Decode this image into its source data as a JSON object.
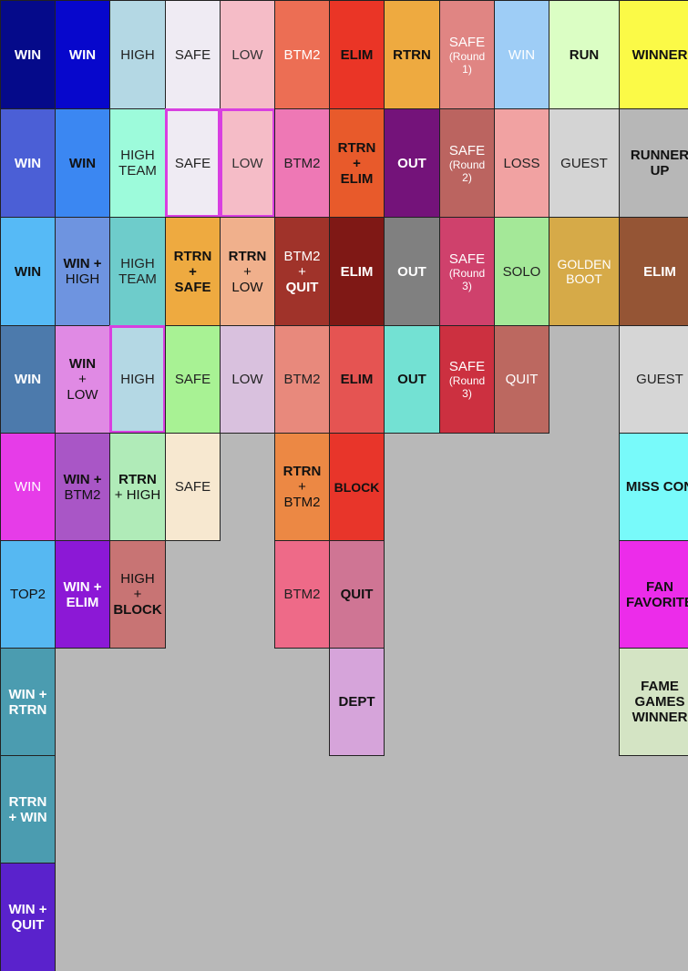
{
  "legend_cells": [
    {
      "col": 0,
      "row": 0,
      "bg": "#050a8a",
      "fg": "#ffffff",
      "lines": [
        {
          "t": "WIN",
          "b": true
        }
      ]
    },
    {
      "col": 1,
      "row": 0,
      "bg": "#0707cc",
      "fg": "#ffffff",
      "lines": [
        {
          "t": "WIN",
          "b": true
        }
      ]
    },
    {
      "col": 2,
      "row": 0,
      "bg": "#b4d8e4",
      "fg": "#222222",
      "lines": [
        {
          "t": "HIGH"
        }
      ]
    },
    {
      "col": 3,
      "row": 0,
      "bg": "#efebf3",
      "fg": "#222222",
      "lines": [
        {
          "t": "SAFE"
        }
      ]
    },
    {
      "col": 4,
      "row": 0,
      "bg": "#f5bcc7",
      "fg": "#333333",
      "lines": [
        {
          "t": "LOW"
        }
      ]
    },
    {
      "col": 5,
      "row": 0,
      "bg": "#ec6e54",
      "fg": "#ffffff",
      "lines": [
        {
          "t": "BTM2"
        }
      ]
    },
    {
      "col": 6,
      "row": 0,
      "bg": "#ea3526",
      "fg": "#111111",
      "lines": [
        {
          "t": "ELIM",
          "b": true
        }
      ]
    },
    {
      "col": 7,
      "row": 0,
      "bg": "#eeaa40",
      "fg": "#111111",
      "lines": [
        {
          "t": "RTRN",
          "b": true
        }
      ]
    },
    {
      "col": 8,
      "row": 0,
      "bg": "#e08583",
      "fg": "#ffffff",
      "lines": [
        {
          "t": "SAFE"
        },
        {
          "t": "(Round",
          "s": "small"
        },
        {
          "t": "1)",
          "s": "small"
        }
      ]
    },
    {
      "col": 9,
      "row": 0,
      "bg": "#9ecdf6",
      "fg": "#ffffff",
      "lines": [
        {
          "t": "WIN"
        }
      ]
    },
    {
      "col": 10,
      "row": 0,
      "bg": "#dbfec4",
      "fg": "#111111",
      "lines": [
        {
          "t": "RUN",
          "b": true
        }
      ]
    },
    {
      "col": 11,
      "row": 0,
      "bg": "#fbfa47",
      "fg": "#111111",
      "lines": [
        {
          "t": "WINNER",
          "b": true
        }
      ]
    },
    {
      "col": 0,
      "row": 1,
      "bg": "#4b5fd6",
      "fg": "#ffffff",
      "lines": [
        {
          "t": "WIN",
          "b": true
        }
      ]
    },
    {
      "col": 1,
      "row": 1,
      "bg": "#3b87f2",
      "fg": "#111111",
      "lines": [
        {
          "t": "WIN",
          "b": true
        }
      ]
    },
    {
      "col": 2,
      "row": 1,
      "bg": "#9dfbdb",
      "fg": "#222222",
      "lines": [
        {
          "t": "HIGH"
        },
        {
          "t": "TEAM"
        }
      ]
    },
    {
      "col": 3,
      "row": 1,
      "bg": "#efebf3",
      "fg": "#222222",
      "hl": true,
      "lines": [
        {
          "t": "SAFE"
        }
      ]
    },
    {
      "col": 4,
      "row": 1,
      "bg": "#f5bcc7",
      "fg": "#333333",
      "hl": true,
      "lines": [
        {
          "t": "LOW"
        }
      ]
    },
    {
      "col": 5,
      "row": 1,
      "bg": "#ee78b5",
      "fg": "#222222",
      "lines": [
        {
          "t": "BTM2"
        }
      ]
    },
    {
      "col": 6,
      "row": 1,
      "bg": "#e85a2b",
      "fg": "#111111",
      "lines": [
        {
          "t": "RTRN",
          "b": true
        },
        {
          "t": "+",
          "b": true
        },
        {
          "t": "ELIM",
          "b": true
        }
      ]
    },
    {
      "col": 7,
      "row": 1,
      "bg": "#74137a",
      "fg": "#ffffff",
      "lines": [
        {
          "t": "OUT",
          "b": true
        }
      ]
    },
    {
      "col": 8,
      "row": 1,
      "bg": "#bb6460",
      "fg": "#ffffff",
      "lines": [
        {
          "t": "SAFE"
        },
        {
          "t": "(Round",
          "s": "small"
        },
        {
          "t": "2)",
          "s": "small"
        }
      ]
    },
    {
      "col": 9,
      "row": 1,
      "bg": "#f1a2a2",
      "fg": "#222222",
      "lines": [
        {
          "t": "LOSS"
        }
      ]
    },
    {
      "col": 10,
      "row": 1,
      "bg": "#d4d4d4",
      "fg": "#222222",
      "lines": [
        {
          "t": "GUEST"
        }
      ]
    },
    {
      "col": 11,
      "row": 1,
      "bg": "#b7b7b7",
      "fg": "#111111",
      "lines": [
        {
          "t": "RUNNER",
          "b": true
        },
        {
          "t": "UP",
          "b": true
        }
      ]
    },
    {
      "col": 0,
      "row": 2,
      "bg": "#56baf6",
      "fg": "#111111",
      "lines": [
        {
          "t": "WIN",
          "b": true
        }
      ]
    },
    {
      "col": 1,
      "row": 2,
      "bg": "#6e94e0",
      "fg": "#111111",
      "lines": [
        {
          "t": "WIN  +",
          "b": true
        },
        {
          "t": "HIGH"
        }
      ]
    },
    {
      "col": 2,
      "row": 2,
      "bg": "#6ecccb",
      "fg": "#222222",
      "lines": [
        {
          "t": "HIGH"
        },
        {
          "t": "TEAM"
        }
      ]
    },
    {
      "col": 3,
      "row": 2,
      "bg": "#eeaa40",
      "fg": "#111111",
      "lines": [
        {
          "t": "RTRN",
          "b": true
        },
        {
          "t": "+",
          "b": true
        },
        {
          "t": "SAFE",
          "b": true
        }
      ]
    },
    {
      "col": 4,
      "row": 2,
      "bg": "#f0b08c",
      "fg": "#111111",
      "lines": [
        {
          "t": "RTRN",
          "b": true
        },
        {
          "t": "+"
        },
        {
          "t": "LOW"
        }
      ]
    },
    {
      "col": 5,
      "row": 2,
      "bg": "#a0332a",
      "fg": "#ffffff",
      "lines": [
        {
          "t": "BTM2"
        },
        {
          "t": "+"
        },
        {
          "t": "QUIT",
          "b": true
        }
      ]
    },
    {
      "col": 6,
      "row": 2,
      "bg": "#7f1815",
      "fg": "#ffffff",
      "lines": [
        {
          "t": "ELIM",
          "b": true
        }
      ]
    },
    {
      "col": 7,
      "row": 2,
      "bg": "#808080",
      "fg": "#ffffff",
      "lines": [
        {
          "t": "OUT",
          "b": true
        }
      ]
    },
    {
      "col": 8,
      "row": 2,
      "bg": "#cf416c",
      "fg": "#ffffff",
      "lines": [
        {
          "t": "SAFE"
        },
        {
          "t": "(Round",
          "s": "small"
        },
        {
          "t": "3)",
          "s": "small"
        }
      ]
    },
    {
      "col": 9,
      "row": 2,
      "bg": "#a4e898",
      "fg": "#222222",
      "lines": [
        {
          "t": "SOLO"
        }
      ]
    },
    {
      "col": 10,
      "row": 2,
      "bg": "#d6aa48",
      "fg": "#ffffff",
      "lines": [
        {
          "t": "GOLDEN",
          "s": "mid"
        },
        {
          "t": "BOOT",
          "s": "mid"
        }
      ]
    },
    {
      "col": 11,
      "row": 2,
      "bg": "#955535",
      "fg": "#ffffff",
      "lines": [
        {
          "t": "ELIM",
          "b": true
        }
      ]
    },
    {
      "col": 0,
      "row": 3,
      "bg": "#4c7aac",
      "fg": "#ffffff",
      "lines": [
        {
          "t": "WIN",
          "b": true
        }
      ]
    },
    {
      "col": 1,
      "row": 3,
      "bg": "#e08ae4",
      "fg": "#111111",
      "lines": [
        {
          "t": "WIN",
          "b": true
        },
        {
          "t": "+"
        },
        {
          "t": "LOW"
        }
      ]
    },
    {
      "col": 2,
      "row": 3,
      "bg": "#b4d8e4",
      "fg": "#222222",
      "hl": true,
      "lines": [
        {
          "t": "HIGH"
        }
      ]
    },
    {
      "col": 3,
      "row": 3,
      "bg": "#a8f294",
      "fg": "#222222",
      "lines": [
        {
          "t": "SAFE"
        }
      ]
    },
    {
      "col": 4,
      "row": 3,
      "bg": "#d9c1de",
      "fg": "#222222",
      "lines": [
        {
          "t": "LOW"
        }
      ]
    },
    {
      "col": 5,
      "row": 3,
      "bg": "#e8897c",
      "fg": "#222222",
      "lines": [
        {
          "t": "BTM2"
        }
      ]
    },
    {
      "col": 6,
      "row": 3,
      "bg": "#e55452",
      "fg": "#111111",
      "lines": [
        {
          "t": "ELIM",
          "b": true
        }
      ]
    },
    {
      "col": 7,
      "row": 3,
      "bg": "#73e1d3",
      "fg": "#111111",
      "lines": [
        {
          "t": "OUT",
          "b": true
        }
      ]
    },
    {
      "col": 8,
      "row": 3,
      "bg": "#cc3040",
      "fg": "#ffffff",
      "lines": [
        {
          "t": "SAFE"
        },
        {
          "t": "(Round",
          "s": "small"
        },
        {
          "t": "3)",
          "s": "small"
        }
      ]
    },
    {
      "col": 9,
      "row": 3,
      "bg": "#bc6860",
      "fg": "#ffffff",
      "lines": [
        {
          "t": "QUIT"
        }
      ]
    },
    {
      "col": 11,
      "row": 3,
      "bg": "#d6d6d6",
      "fg": "#222222",
      "lines": [
        {
          "t": "GUEST"
        }
      ]
    },
    {
      "col": 0,
      "row": 4,
      "bg": "#e63ce8",
      "fg": "#ffffff",
      "lines": [
        {
          "t": "WIN"
        }
      ]
    },
    {
      "col": 1,
      "row": 4,
      "bg": "#a956c6",
      "fg": "#111111",
      "lines": [
        {
          "t": "WIN  +",
          "b": true
        },
        {
          "t": "BTM2"
        }
      ]
    },
    {
      "col": 2,
      "row": 4,
      "bg": "#b0ebb8",
      "fg": "#111111",
      "lines": [
        {
          "t": "RTRN",
          "b": true
        },
        {
          "t": "+ HIGH"
        }
      ]
    },
    {
      "col": 3,
      "row": 4,
      "bg": "#f7e8d0",
      "fg": "#222222",
      "lines": [
        {
          "t": "SAFE"
        }
      ]
    },
    {
      "col": 5,
      "row": 4,
      "bg": "#ec8844",
      "fg": "#111111",
      "lines": [
        {
          "t": "RTRN",
          "b": true
        },
        {
          "t": "+"
        },
        {
          "t": "BTM2"
        }
      ]
    },
    {
      "col": 6,
      "row": 4,
      "bg": "#e8352a",
      "fg": "#111111",
      "lines": [
        {
          "t": "BLOCK",
          "b": true,
          "s": "mid"
        }
      ]
    },
    {
      "col": 11,
      "row": 4,
      "bg": "#78fafa",
      "fg": "#111111",
      "lines": [
        {
          "t": "MISS  CON",
          "b": true
        }
      ]
    },
    {
      "col": 0,
      "row": 5,
      "bg": "#56b8f2",
      "fg": "#111111",
      "lines": [
        {
          "t": "TOP2"
        }
      ]
    },
    {
      "col": 1,
      "row": 5,
      "bg": "#8c18d6",
      "fg": "#ffffff",
      "lines": [
        {
          "t": "WIN  +",
          "b": true
        },
        {
          "t": "ELIM",
          "b": true
        }
      ]
    },
    {
      "col": 2,
      "row": 5,
      "bg": "#c87474",
      "fg": "#111111",
      "lines": [
        {
          "t": "HIGH"
        },
        {
          "t": "+"
        },
        {
          "t": "BLOCK",
          "b": true
        }
      ]
    },
    {
      "col": 5,
      "row": 5,
      "bg": "#ee6a88",
      "fg": "#222222",
      "lines": [
        {
          "t": "BTM2"
        }
      ]
    },
    {
      "col": 6,
      "row": 5,
      "bg": "#cf7594",
      "fg": "#111111",
      "lines": [
        {
          "t": "QUIT",
          "b": true
        }
      ]
    },
    {
      "col": 11,
      "row": 5,
      "bg": "#ec2cea",
      "fg": "#111111",
      "lines": [
        {
          "t": "FAN",
          "b": true
        },
        {
          "t": "FAVORITE",
          "b": true
        }
      ]
    },
    {
      "col": 0,
      "row": 6,
      "bg": "#4b9cb0",
      "fg": "#ffffff",
      "lines": [
        {
          "t": "WIN  +",
          "b": true
        },
        {
          "t": "RTRN",
          "b": true
        }
      ]
    },
    {
      "col": 6,
      "row": 6,
      "bg": "#d6a4da",
      "fg": "#111111",
      "lines": [
        {
          "t": "DEPT",
          "b": true
        }
      ]
    },
    {
      "col": 11,
      "row": 6,
      "bg": "#d4e4c4",
      "fg": "#111111",
      "lines": [
        {
          "t": "FAME",
          "b": true
        },
        {
          "t": "GAMES",
          "b": true
        },
        {
          "t": "WINNER",
          "b": true
        }
      ]
    },
    {
      "col": 0,
      "row": 7,
      "bg": "#4b9cb0",
      "fg": "#ffffff",
      "lines": [
        {
          "t": "RTRN",
          "b": true
        },
        {
          "t": "+  WIN",
          "b": true
        }
      ]
    },
    {
      "col": 0,
      "row": 8,
      "bg": "#5a22cc",
      "fg": "#ffffff",
      "lines": [
        {
          "t": "WIN  +",
          "b": true
        },
        {
          "t": "QUIT",
          "b": true
        }
      ]
    }
  ]
}
